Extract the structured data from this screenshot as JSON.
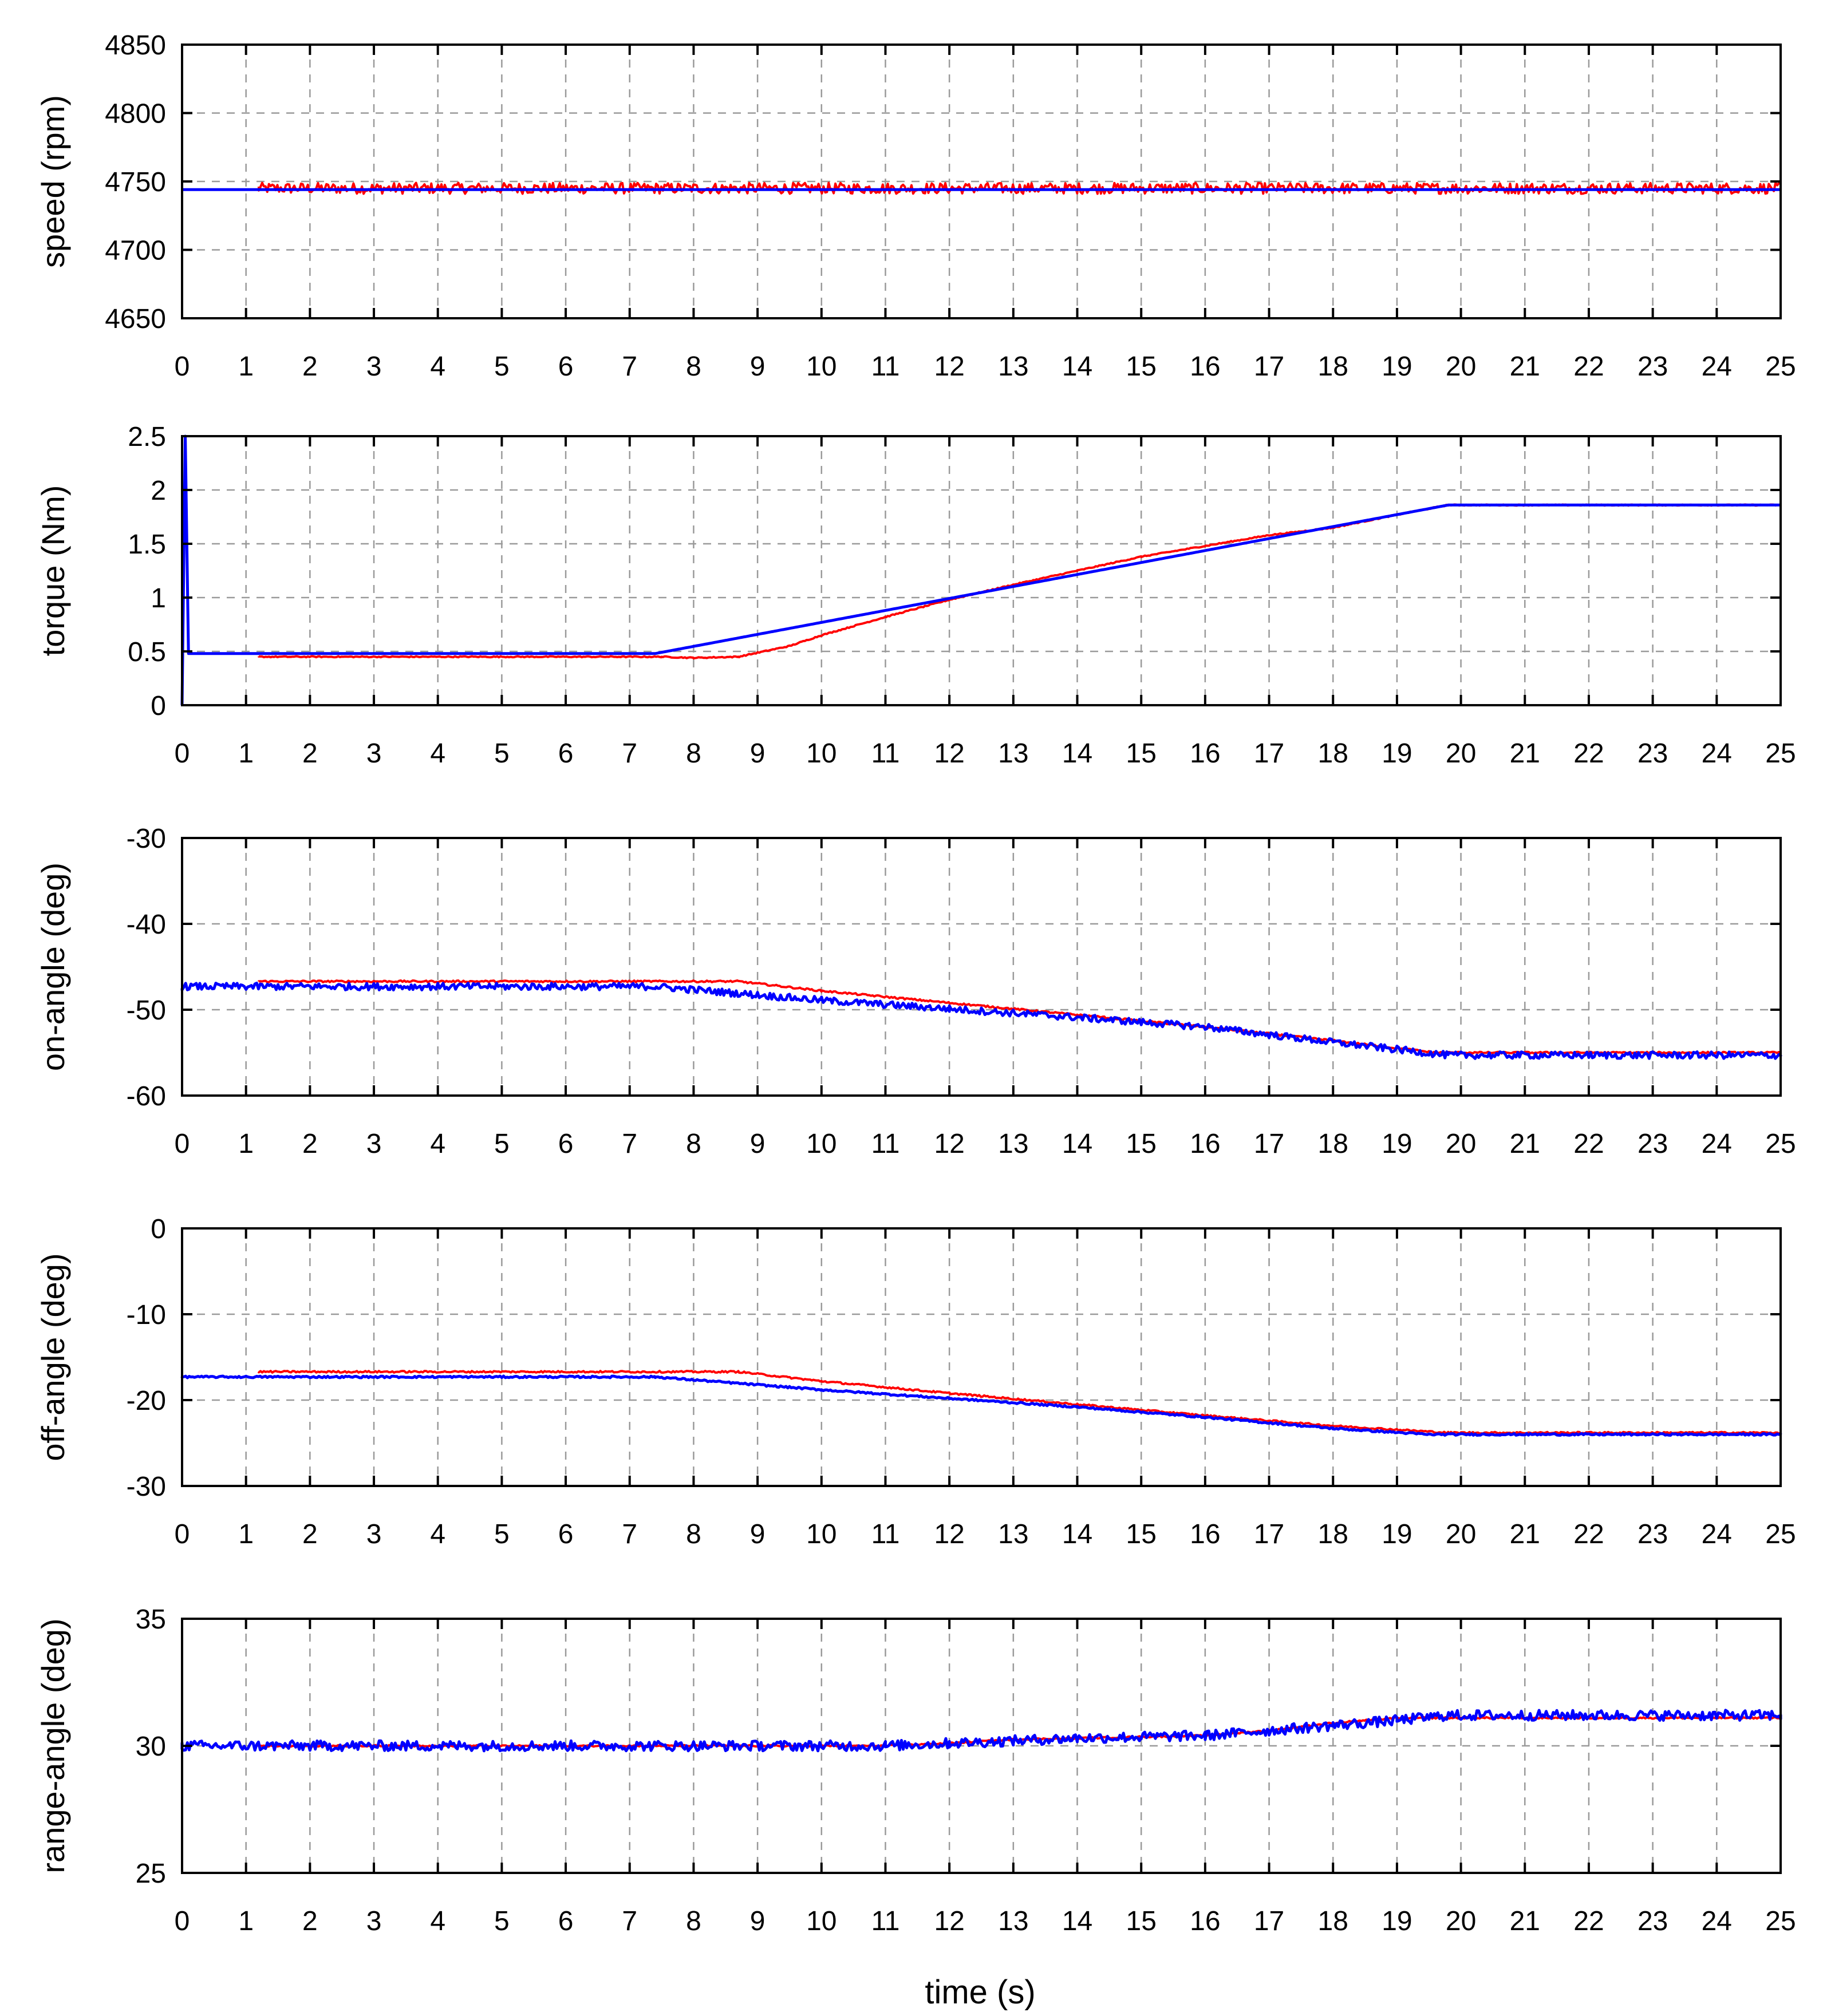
{
  "figure": {
    "xlabel": "time (s)"
  },
  "colors": {
    "reference": "#ff0000",
    "model": "#0000ff",
    "grid": "#9a9a9a",
    "axes": "#000000"
  },
  "chart_data": [
    {
      "type": "line",
      "id": "speed",
      "ylabel": "speed (rpm)",
      "xlim": [
        0,
        25
      ],
      "ylim": [
        4650,
        4850
      ],
      "xticks": [
        0,
        1,
        2,
        3,
        4,
        5,
        6,
        7,
        8,
        9,
        10,
        11,
        12,
        13,
        14,
        15,
        16,
        17,
        18,
        19,
        20,
        21,
        22,
        23,
        24,
        25
      ],
      "yticks": [
        4650,
        4700,
        4750,
        4800,
        4850
      ],
      "grid": true,
      "series": [
        {
          "name": "red",
          "color": "#ff0000",
          "noise": 4,
          "x": [
            1.2,
            25
          ],
          "y": [
            4745,
            4745
          ]
        },
        {
          "name": "blue",
          "color": "#0000ff",
          "noise": 0,
          "x": [
            0,
            25
          ],
          "y": [
            4744,
            4744
          ]
        }
      ]
    },
    {
      "type": "line",
      "id": "torque",
      "ylabel": "torque (Nm)",
      "xlim": [
        0,
        25
      ],
      "ylim": [
        0,
        2.5
      ],
      "xticks": [
        0,
        1,
        2,
        3,
        4,
        5,
        6,
        7,
        8,
        9,
        10,
        11,
        12,
        13,
        14,
        15,
        16,
        17,
        18,
        19,
        20,
        21,
        22,
        23,
        24,
        25
      ],
      "yticks": [
        0,
        0.5,
        1,
        1.5,
        2,
        2.5
      ],
      "grid": true,
      "series": [
        {
          "name": "red",
          "color": "#ff0000",
          "noise": 0.005,
          "x": [
            1.2,
            7.5,
            8.0,
            8.7,
            9.5,
            10.0,
            11.0,
            12.0,
            13.0,
            14.0,
            15.0,
            16.0,
            17.0,
            18.0,
            19.0,
            19.8,
            25
          ],
          "y": [
            0.45,
            0.45,
            0.44,
            0.45,
            0.55,
            0.65,
            0.82,
            0.98,
            1.12,
            1.25,
            1.38,
            1.48,
            1.58,
            1.65,
            1.77,
            1.86,
            1.86
          ]
        },
        {
          "name": "blue",
          "color": "#0000ff",
          "noise": 0,
          "x": [
            0,
            0.05,
            0.1,
            7.4,
            19.8,
            25
          ],
          "y": [
            0,
            2.5,
            0.48,
            0.48,
            1.86,
            1.86
          ]
        }
      ]
    },
    {
      "type": "line",
      "id": "on-angle",
      "ylabel": "on-angle (deg)",
      "xlim": [
        0,
        25
      ],
      "ylim": [
        -60,
        -30
      ],
      "xticks": [
        0,
        1,
        2,
        3,
        4,
        5,
        6,
        7,
        8,
        9,
        10,
        11,
        12,
        13,
        14,
        15,
        16,
        17,
        18,
        19,
        20,
        21,
        22,
        23,
        24,
        25
      ],
      "yticks": [
        -60,
        -50,
        -40,
        -30
      ],
      "grid": true,
      "series": [
        {
          "name": "red",
          "color": "#ff0000",
          "noise": 0.1,
          "x": [
            1.2,
            8.7,
            10,
            12,
            14,
            16,
            18,
            19.6,
            25
          ],
          "y": [
            -46.7,
            -46.7,
            -47.8,
            -49.2,
            -50.6,
            -52.0,
            -53.6,
            -55.0,
            -55.0
          ]
        },
        {
          "name": "blue",
          "color": "#0000ff",
          "noise": 0.4,
          "x": [
            0,
            7.4,
            10,
            12,
            14,
            16,
            18,
            19.8,
            25
          ],
          "y": [
            -47.3,
            -47.3,
            -48.9,
            -49.9,
            -50.9,
            -52.0,
            -53.8,
            -55.3,
            -55.3
          ]
        }
      ]
    },
    {
      "type": "line",
      "id": "off-angle",
      "ylabel": "off-angle (deg)",
      "xlim": [
        0,
        25
      ],
      "ylim": [
        -30,
        0
      ],
      "xticks": [
        0,
        1,
        2,
        3,
        4,
        5,
        6,
        7,
        8,
        9,
        10,
        11,
        12,
        13,
        14,
        15,
        16,
        17,
        18,
        19,
        20,
        21,
        22,
        23,
        24,
        25
      ],
      "yticks": [
        -30,
        -20,
        -10,
        0
      ],
      "grid": true,
      "series": [
        {
          "name": "red",
          "color": "#ff0000",
          "noise": 0.1,
          "x": [
            1.2,
            8.7,
            10,
            12,
            14,
            16,
            18,
            19.8,
            25
          ],
          "y": [
            -16.7,
            -16.7,
            -17.8,
            -19.2,
            -20.5,
            -21.8,
            -23.0,
            -23.8,
            -23.8
          ]
        },
        {
          "name": "blue",
          "color": "#0000ff",
          "noise": 0.1,
          "x": [
            0,
            7.4,
            10,
            12,
            14,
            16,
            18,
            19.5,
            25
          ],
          "y": [
            -17.3,
            -17.3,
            -18.8,
            -19.8,
            -20.8,
            -22.0,
            -23.3,
            -24.0,
            -24.0
          ]
        }
      ]
    },
    {
      "type": "line",
      "id": "range-angle",
      "ylabel": "range-angle (deg)",
      "xlim": [
        0,
        25
      ],
      "ylim": [
        25,
        35
      ],
      "xticks": [
        0,
        1,
        2,
        3,
        4,
        5,
        6,
        7,
        8,
        9,
        10,
        11,
        12,
        13,
        14,
        15,
        16,
        17,
        18,
        19,
        20,
        21,
        22,
        23,
        24,
        25
      ],
      "yticks": [
        25,
        30,
        35
      ],
      "grid": true,
      "series": [
        {
          "name": "red",
          "color": "#ff0000",
          "noise": 0.03,
          "x": [
            1.2,
            11,
            12,
            13,
            14,
            15,
            16,
            17,
            18,
            19,
            25
          ],
          "y": [
            30.0,
            30.0,
            30.1,
            30.25,
            30.3,
            30.35,
            30.4,
            30.6,
            30.9,
            31.1,
            31.1
          ]
        },
        {
          "name": "blue",
          "color": "#0000ff",
          "noise": 0.2,
          "x": [
            0,
            11,
            12,
            13,
            14,
            15,
            16,
            17,
            18,
            19,
            19.8,
            25
          ],
          "y": [
            30.0,
            30.0,
            30.1,
            30.2,
            30.3,
            30.35,
            30.4,
            30.6,
            30.8,
            31.0,
            31.2,
            31.2
          ]
        }
      ]
    }
  ]
}
